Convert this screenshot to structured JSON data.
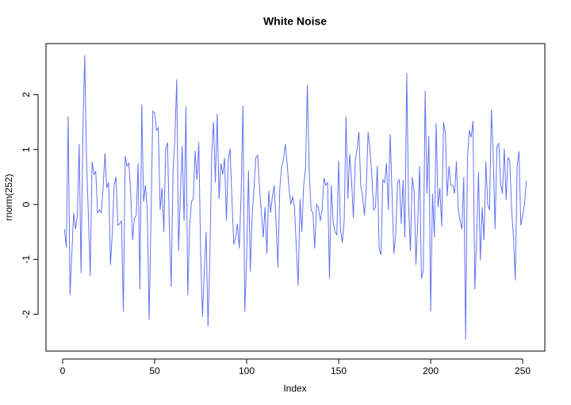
{
  "chart_data": {
    "type": "line",
    "title": "White Noise",
    "x_label": "Index",
    "y_label": "rnorm(252)",
    "color": "#6272f5",
    "xlim": [
      -9.04,
      262.04
    ],
    "ylim": [
      -2.67,
      2.93
    ],
    "xticks": [
      0,
      50,
      100,
      150,
      200,
      250
    ],
    "yticks": [
      -2,
      -1,
      0,
      1,
      2
    ],
    "x": [
      1,
      2,
      3,
      4,
      5,
      6,
      7,
      8,
      9,
      10,
      11,
      12,
      13,
      14,
      15,
      16,
      17,
      18,
      19,
      20,
      21,
      22,
      23,
      24,
      25,
      26,
      27,
      28,
      29,
      30,
      31,
      32,
      33,
      34,
      35,
      36,
      37,
      38,
      39,
      40,
      41,
      42,
      43,
      44,
      45,
      46,
      47,
      48,
      49,
      50,
      51,
      52,
      53,
      54,
      55,
      56,
      57,
      58,
      59,
      60,
      61,
      62,
      63,
      64,
      65,
      66,
      67,
      68,
      69,
      70,
      71,
      72,
      73,
      74,
      75,
      76,
      77,
      78,
      79,
      80,
      81,
      82,
      83,
      84,
      85,
      86,
      87,
      88,
      89,
      90,
      91,
      92,
      93,
      94,
      95,
      96,
      97,
      98,
      99,
      100,
      101,
      102,
      103,
      104,
      105,
      106,
      107,
      108,
      109,
      110,
      111,
      112,
      113,
      114,
      115,
      116,
      117,
      118,
      119,
      120,
      121,
      122,
      123,
      124,
      125,
      126,
      127,
      128,
      129,
      130,
      131,
      132,
      133,
      134,
      135,
      136,
      137,
      138,
      139,
      140,
      141,
      142,
      143,
      144,
      145,
      146,
      147,
      148,
      149,
      150,
      151,
      152,
      153,
      154,
      155,
      156,
      157,
      158,
      159,
      160,
      161,
      162,
      163,
      164,
      165,
      166,
      167,
      168,
      169,
      170,
      171,
      172,
      173,
      174,
      175,
      176,
      177,
      178,
      179,
      180,
      181,
      182,
      183,
      184,
      185,
      186,
      187,
      188,
      189,
      190,
      191,
      192,
      193,
      194,
      195,
      196,
      197,
      198,
      199,
      200,
      201,
      202,
      203,
      204,
      205,
      206,
      207,
      208,
      209,
      210,
      211,
      212,
      213,
      214,
      215,
      216,
      217,
      218,
      219,
      220,
      221,
      222,
      223,
      224,
      225,
      226,
      227,
      228,
      229,
      230,
      231,
      232,
      233,
      234,
      235,
      236,
      237,
      238,
      239,
      240,
      241,
      242,
      243,
      244,
      245,
      246,
      247,
      248,
      249,
      250,
      251,
      252
    ],
    "values": [
      -0.45,
      -0.78,
      1.6,
      -1.65,
      -0.9,
      -0.15,
      -0.45,
      -0.2,
      1.1,
      -1.25,
      1.3,
      2.72,
      0.8,
      -0.2,
      -1.3,
      0.78,
      0.55,
      0.6,
      -0.15,
      -0.1,
      -0.15,
      0.3,
      0.93,
      0.3,
      0.4,
      -1.1,
      -0.5,
      0.35,
      0.5,
      -0.38,
      -0.35,
      -0.3,
      -1.95,
      0.88,
      0.7,
      0.75,
      0.2,
      -0.65,
      -0.25,
      -0.2,
      0.75,
      -1.55,
      1.82,
      0.05,
      0.35,
      -0.1,
      -2.1,
      -0.3,
      1.7,
      1.67,
      1.35,
      1.4,
      -0.1,
      0.3,
      -0.5,
      1.0,
      1.13,
      -0.4,
      -1.5,
      0.6,
      1.2,
      2.28,
      -0.85,
      0.2,
      1.07,
      -0.3,
      1.78,
      -1.65,
      -0.4,
      0.05,
      0.1,
      0.98,
      0.45,
      1.13,
      -0.9,
      -2.05,
      -1.2,
      -0.5,
      -2.22,
      -1.0,
      0.9,
      1.5,
      0.4,
      1.65,
      0.1,
      0.75,
      0.55,
      0.85,
      -0.3,
      0.8,
      1.02,
      0.1,
      -0.73,
      -0.6,
      -0.35,
      -0.8,
      0.2,
      1.8,
      -1.95,
      -1.0,
      0.62,
      -1.22,
      -0.2,
      0.3,
      0.85,
      0.9,
      0.3,
      -0.15,
      -0.6,
      -0.05,
      -0.9,
      0.25,
      -0.15,
      0.15,
      0.35,
      -0.35,
      -1.15,
      0.3,
      0.68,
      0.82,
      1.1,
      0.75,
      0.3,
      0.0,
      0.15,
      -0.05,
      -0.8,
      -1.48,
      0.1,
      -0.5,
      0.35,
      0.65,
      2.18,
      0.6,
      -0.1,
      -0.15,
      -0.8,
      0.0,
      -0.05,
      -0.3,
      -0.1,
      0.48,
      0.35,
      0.4,
      -1.35,
      0.35,
      -0.3,
      -0.5,
      -0.55,
      0.8,
      -0.45,
      -0.7,
      -0.3,
      1.6,
      0.1,
      0.92,
      0.45,
      -0.25,
      0.8,
      1.0,
      1.32,
      0.35,
      0.15,
      -0.2,
      0.3,
      1.32,
      1.0,
      0.55,
      -0.1,
      -0.05,
      0.7,
      -0.8,
      -0.92,
      0.45,
      0.4,
      0.75,
      -0.1,
      1.28,
      0.2,
      -0.9,
      -0.55,
      0.4,
      0.45,
      -0.35,
      0.45,
      -0.6,
      2.4,
      0.0,
      -0.85,
      0.5,
      0.25,
      -1.1,
      -0.3,
      0.7,
      -1.35,
      -1.2,
      2.07,
      0.2,
      1.25,
      -1.95,
      0.2,
      -0.6,
      1.48,
      -0.05,
      0.3,
      -0.4,
      1.5,
      1.3,
      0.15,
      0.7,
      0.35,
      0.35,
      0.2,
      0.78,
      -0.1,
      -0.3,
      -0.45,
      0.5,
      -2.46,
      0.85,
      1.35,
      1.22,
      1.52,
      -1.55,
      -0.6,
      0.6,
      -1.02,
      -0.05,
      -0.65,
      0.78,
      0.0,
      -0.1,
      1.72,
      0.9,
      -0.45,
      1.05,
      1.12,
      0.4,
      0.2,
      1.02,
      0.08,
      0.85,
      0.8,
      -0.1,
      -0.6,
      -1.38,
      0.7,
      0.97,
      -0.38,
      -0.2,
      0.0,
      0.43
    ]
  }
}
